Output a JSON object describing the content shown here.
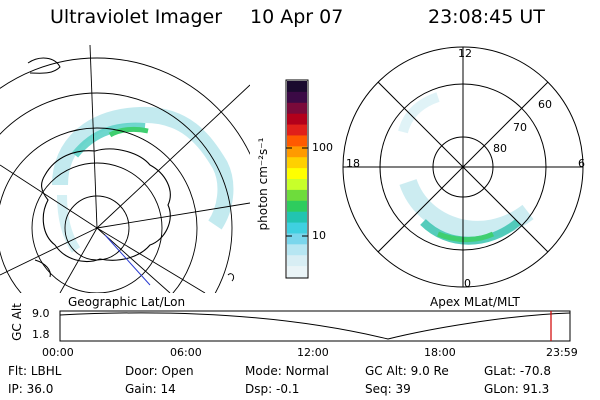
{
  "header": {
    "title": "Ultraviolet Imager",
    "date": "10 Apr 07",
    "time": "23:08:45 UT"
  },
  "left_panel": {
    "caption": "Geographic Lat/Lon"
  },
  "right_panel": {
    "caption": "Apex MLat/MLT",
    "mlt_labels": {
      "top": "12",
      "left": "18",
      "right": "6",
      "bottom": "0"
    },
    "lat_labels": [
      "60",
      "70",
      "80"
    ]
  },
  "colorbar": {
    "unit_label": "photon cm⁻²s⁻¹",
    "ticks": [
      "100",
      "10"
    ],
    "colors": [
      "#1a0a2e",
      "#3b0a45",
      "#7a0a3a",
      "#b3001b",
      "#e0201a",
      "#ff5a00",
      "#ff9a00",
      "#ffd000",
      "#ffff00",
      "#c8ff2a",
      "#6edc3c",
      "#2ecc5e",
      "#22c4b0",
      "#3fd0e0",
      "#7ad6ec",
      "#b6e6f2",
      "#d8eef4",
      "#eaf4f7"
    ]
  },
  "altitude_strip": {
    "axis_title": "GC Alt",
    "y_ticks": [
      "9.0",
      "1.8"
    ],
    "x_ticks": [
      "00:00",
      "06:00",
      "12:00",
      "18:00",
      "23:59"
    ]
  },
  "info": {
    "row1": [
      {
        "label": "Flt:",
        "value": "LBHL"
      },
      {
        "label": "Door:",
        "value": "Open"
      },
      {
        "label": "Mode:",
        "value": "Normal"
      },
      {
        "label": "GC Alt:",
        "value": "9.0 Re"
      },
      {
        "label": "GLat:",
        "value": "-70.8"
      }
    ],
    "row2": [
      {
        "label": "IP:",
        "value": "36.0"
      },
      {
        "label": "Gain:",
        "value": "14"
      },
      {
        "label": "Dsp:",
        "value": "-0.1"
      },
      {
        "label": "Seq:",
        "value": "39"
      },
      {
        "label": "GLon:",
        "value": "91.3"
      }
    ]
  }
}
